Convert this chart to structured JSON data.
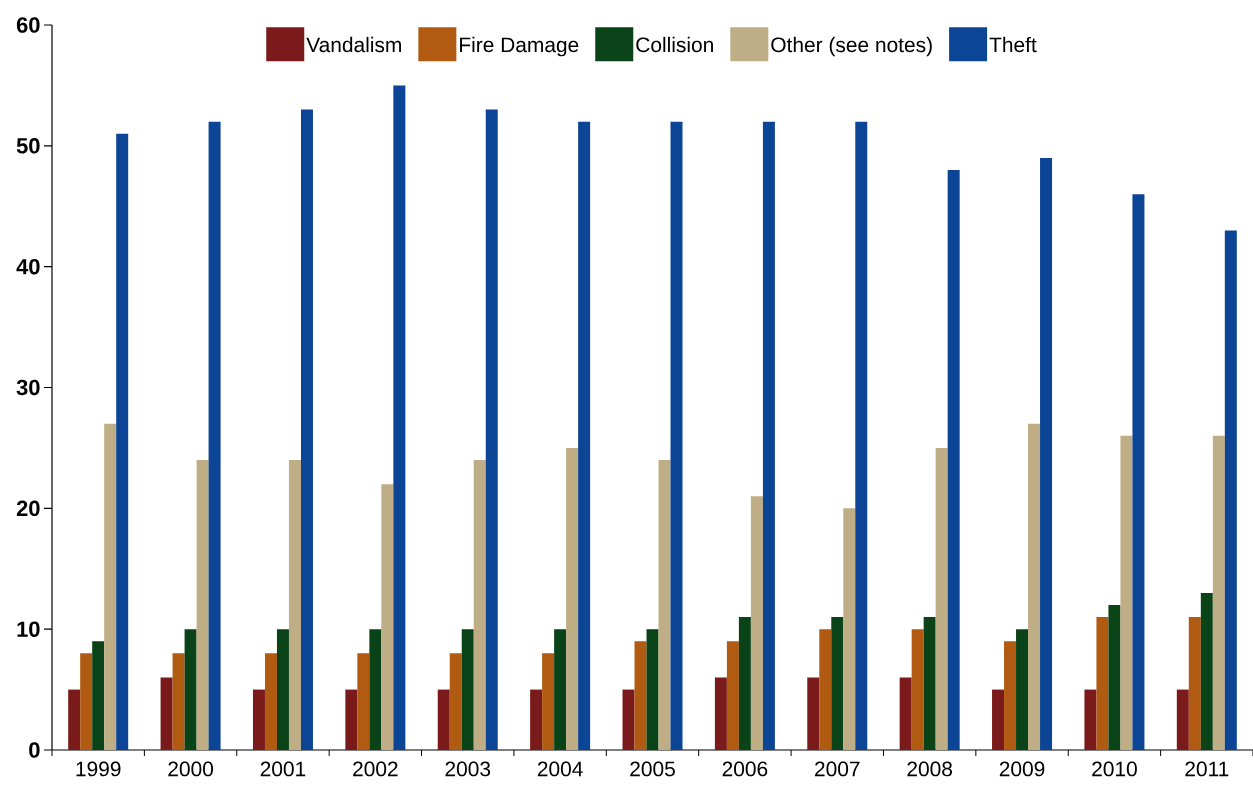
{
  "chart_data": {
    "type": "bar",
    "categories": [
      "1999",
      "2000",
      "2001",
      "2002",
      "2003",
      "2004",
      "2005",
      "2006",
      "2007",
      "2008",
      "2009",
      "2010",
      "2011"
    ],
    "series": [
      {
        "name": "Vandalism",
        "color": "#7b1a1a",
        "values": [
          5,
          6,
          5,
          5,
          5,
          5,
          5,
          6,
          6,
          6,
          5,
          5,
          5
        ]
      },
      {
        "name": "Fire Damage",
        "color": "#b05a12",
        "values": [
          8,
          8,
          8,
          8,
          8,
          8,
          9,
          9,
          10,
          10,
          9,
          11,
          11
        ]
      },
      {
        "name": "Collision",
        "color": "#0a4317",
        "values": [
          9,
          10,
          10,
          10,
          10,
          10,
          10,
          11,
          11,
          11,
          10,
          12,
          13
        ]
      },
      {
        "name": "Other (see notes)",
        "color": "#bfad85",
        "values": [
          27,
          24,
          24,
          22,
          24,
          25,
          24,
          21,
          20,
          25,
          27,
          26,
          26
        ]
      },
      {
        "name": "Theft",
        "color": "#0c4596",
        "values": [
          51,
          52,
          53,
          55,
          53,
          52,
          52,
          52,
          52,
          48,
          49,
          46,
          43
        ]
      }
    ],
    "ylim": [
      0,
      60
    ],
    "yticks": [
      0,
      10,
      20,
      30,
      40,
      50,
      60
    ],
    "grid": false,
    "legend": "top"
  }
}
